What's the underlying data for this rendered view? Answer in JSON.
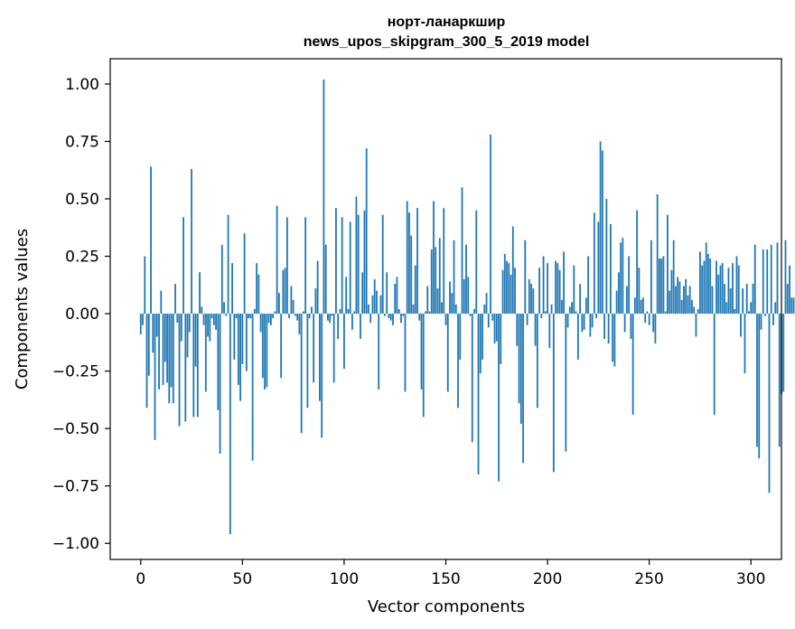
{
  "chart_data": {
    "type": "bar",
    "title_line1": "норт-ланаркшир",
    "title_line2": "news_upos_skipgram_300_5_2019 model",
    "xlabel": "Vector components",
    "ylabel": "Components values",
    "xlim": [
      -15,
      315
    ],
    "ylim": [
      -1.07,
      1.11
    ],
    "xticks": [
      0,
      50,
      100,
      150,
      200,
      250,
      300
    ],
    "yticks": [
      -1.0,
      -0.75,
      -0.5,
      -0.25,
      0.0,
      0.25,
      0.5,
      0.75,
      1.0
    ],
    "ytick_labels": [
      "−1.00",
      "−0.75",
      "−0.50",
      "−0.25",
      "0.00",
      "0.25",
      "0.50",
      "0.75",
      "1.00"
    ],
    "bar_color": "#1f77b4",
    "values": [
      -0.09,
      -0.05,
      0.25,
      -0.41,
      -0.27,
      0.64,
      -0.17,
      -0.55,
      -0.1,
      -0.33,
      0.1,
      -0.31,
      -0.21,
      -0.3,
      -0.39,
      -0.32,
      -0.39,
      0.13,
      -0.04,
      -0.49,
      -0.12,
      0.42,
      -0.47,
      -0.19,
      -0.08,
      0.63,
      -0.45,
      -0.23,
      -0.45,
      0.18,
      0.03,
      -0.05,
      -0.34,
      -0.1,
      -0.12,
      -0.02,
      -0.05,
      -0.07,
      -0.42,
      -0.61,
      0.3,
      0.05,
      -0.01,
      0.43,
      -0.96,
      0.22,
      -0.2,
      -0.02,
      -0.31,
      -0.38,
      -0.22,
      0.35,
      -0.25,
      -0.02,
      -0.02,
      -0.64,
      0.02,
      0.22,
      0.17,
      -0.08,
      -0.28,
      -0.33,
      -0.32,
      -0.04,
      -0.05,
      -0.02,
      0.01,
      0.47,
      0.09,
      -0.28,
      0.19,
      0.2,
      0.42,
      -0.02,
      0.12,
      0.06,
      -0.01,
      -0.03,
      -0.09,
      -0.52,
      0.01,
      0.42,
      -0.41,
      -0.02,
      0.03,
      -0.3,
      0.11,
      0.23,
      -0.38,
      -0.54,
      1.02,
      0.3,
      -0.03,
      -0.04,
      -0.01,
      -0.3,
      0.46,
      -0.11,
      0.02,
      0.42,
      -0.24,
      0.16,
      0.02,
      0.4,
      -0.07,
      0.01,
      0.51,
      0.43,
      -0.11,
      0.18,
      0.45,
      0.72,
      0.04,
      -0.04,
      0.08,
      0.15,
      0.1,
      -0.33,
      0.08,
      0.43,
      -0.01,
      0.18,
      -0.02,
      -0.03,
      -0.05,
      0.13,
      0.16,
      0.02,
      -0.04,
      -0.01,
      -0.34,
      0.49,
      0.44,
      0.34,
      0.04,
      0.21,
      0.46,
      -0.03,
      -0.33,
      -0.45,
      0.01,
      0.12,
      0.01,
      0.28,
      0.49,
      0.29,
      0.11,
      0.33,
      0.05,
      0.46,
      -0.05,
      -0.34,
      0.14,
      0.09,
      0.32,
      0.04,
      -0.41,
      -0.2,
      0.55,
      0.15,
      0.3,
      0.16,
      -0.01,
      -0.56,
      0.02,
      0.45,
      -0.7,
      -0.26,
      -0.2,
      0.04,
      0.09,
      -0.06,
      0.78,
      -0.03,
      -0.13,
      -0.12,
      -0.73,
      -0.22,
      0.19,
      0.26,
      0.23,
      0.22,
      0.17,
      0.38,
      0.2,
      -0.14,
      -0.39,
      -0.48,
      -0.65,
      0.32,
      -0.05,
      0.15,
      0.13,
      0.11,
      -0.14,
      -0.41,
      0.2,
      -0.02,
      0.25,
      0.01,
      0.22,
      -0.15,
      0.04,
      -0.69,
      0.23,
      0.22,
      0.19,
      0.06,
      0.27,
      -0.6,
      -0.06,
      0.03,
      0.05,
      0.21,
      0.01,
      -0.2,
      0.13,
      -0.08,
      -0.07,
      0.07,
      0.25,
      -0.1,
      -0.06,
      0.44,
      -0.02,
      0.4,
      0.75,
      0.71,
      -0.11,
      0.5,
      -0.13,
      0.39,
      -0.21,
      -0.23,
      0.1,
      0.18,
      0.31,
      0.33,
      -0.08,
      0.12,
      0.25,
      -0.11,
      -0.44,
      0.07,
      0.45,
      0.2,
      0.06,
      0.07,
      -0.04,
      0.01,
      -0.05,
      0.32,
      -0.08,
      -0.13,
      0.52,
      0.24,
      0.24,
      0.25,
      0.01,
      0.43,
      0.1,
      0.19,
      0.32,
      0.12,
      0.16,
      0.14,
      0.06,
      0.12,
      0.15,
      0.08,
      0.12,
      0.06,
      0.03,
      -0.1,
      0.02,
      0.27,
      0.21,
      0.23,
      0.31,
      0.26,
      0.24,
      0.12,
      -0.44,
      0.23,
      0.17,
      0.21,
      0.22,
      0.13,
      0.05,
      0.2,
      0.11,
      0.22,
      0.02,
      0.25,
      0.21,
      -0.1,
      0.11,
      -0.26,
      0.13,
      0.01,
      0.05,
      0.13,
      0.3,
      -0.58,
      -0.63,
      -0.07,
      0.28,
      -0.01,
      0.28,
      -0.78,
      0.3,
      -0.05,
      0.05,
      0.31,
      -0.58,
      -0.35,
      -0.34,
      0.32,
      0.13,
      0.21,
      0.07,
      0.07
    ]
  }
}
